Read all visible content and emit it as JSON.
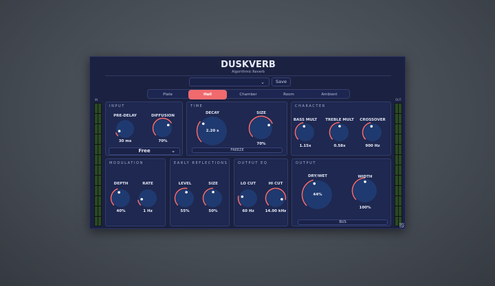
{
  "header": {
    "title": "DUSKVERB",
    "subtitle": "Algorithmic Reverb"
  },
  "preset": {
    "value": "",
    "save_label": "Save"
  },
  "tabs": [
    {
      "label": "Plate"
    },
    {
      "label": "Hall",
      "active": true
    },
    {
      "label": "Chamber"
    },
    {
      "label": "Room"
    },
    {
      "label": "Ambient"
    }
  ],
  "meters": {
    "in_label": "IN",
    "out_label": "OUT"
  },
  "panels": {
    "input": {
      "title": "INPUT",
      "sync_value": "Free"
    },
    "time": {
      "title": "TIME",
      "freeze_label": "FREEZE"
    },
    "character": {
      "title": "CHARACTER"
    },
    "modulation": {
      "title": "MODULATION"
    },
    "early": {
      "title": "EARLY REFLECTIONS"
    },
    "eq": {
      "title": "OUTPUT EQ"
    },
    "output": {
      "title": "OUTPUT",
      "bus_label": "BUS"
    }
  },
  "knobs": [
    {
      "id": "pre-delay",
      "label": "PRE-DELAY",
      "value": "30 ms",
      "level": 0.09
    },
    {
      "id": "diffusion",
      "label": "DIFFUSION",
      "value": "70%",
      "level": 0.72
    },
    {
      "id": "decay",
      "label": "DECAY",
      "value": "2.20 s",
      "level": 0.31
    },
    {
      "id": "size",
      "label": "SIZE",
      "value": "70%",
      "level": 0.75
    },
    {
      "id": "bass-mult",
      "label": "BASS MULT",
      "value": "1.15x",
      "level": 0.46
    },
    {
      "id": "treble-mult",
      "label": "TREBLE MULT",
      "value": "0.58x",
      "level": 0.5
    },
    {
      "id": "crossover",
      "label": "CROSSOVER",
      "value": "900 Hz",
      "level": 0.46
    },
    {
      "id": "depth",
      "label": "DEPTH",
      "value": "40%",
      "level": 0.43
    },
    {
      "id": "rate",
      "label": "RATE",
      "value": "1 Hz",
      "level": 0.13
    },
    {
      "id": "er-level",
      "label": "LEVEL",
      "value": "55%",
      "level": 0.55
    },
    {
      "id": "er-size",
      "label": "SIZE",
      "value": "50%",
      "level": 0.5
    },
    {
      "id": "lo-cut",
      "label": "LO CUT",
      "value": "60 Hz",
      "level": 0.22
    },
    {
      "id": "hi-cut",
      "label": "HI CUT",
      "value": "14.00 kHz",
      "level": 0.87
    },
    {
      "id": "dry-wet",
      "label": "DRY/WET",
      "value": "44%",
      "level": 0.44
    },
    {
      "id": "width",
      "label": "WIDTH",
      "value": "100%",
      "level": 0.5
    }
  ],
  "colors": {
    "accent": "#f06a6e",
    "knob": "#1f3a70",
    "background": "#1b2140",
    "panel": "#1e2850"
  }
}
